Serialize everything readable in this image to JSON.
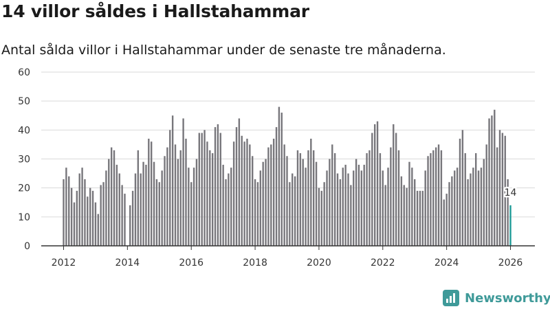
{
  "title": "14 villor såldes i Hallstahammar",
  "subtitle": "Antal sålda villor i Hallstahammar under de senaste tre månaderna.",
  "brand": {
    "name": "Newsworthy",
    "icon": "newsworthy-logo-icon"
  },
  "colors": {
    "bar": "#77767b",
    "highlight": "#1e9b97",
    "axis": "#333333",
    "grid": "#d9d9d9"
  },
  "chart_data": {
    "type": "bar",
    "title": "14 villor såldes i Hallstahammar",
    "xlabel": "",
    "ylabel": "",
    "ylim": [
      0,
      60
    ],
    "yticks": [
      0,
      10,
      20,
      30,
      40,
      50,
      60
    ],
    "xticks": [
      "2012",
      "2014",
      "2016",
      "2018",
      "2020",
      "2022",
      "2024",
      "2026"
    ],
    "x_start": "2012-01",
    "x_end": "2026-01",
    "grid": true,
    "frequency": "monthly, rolling 3-month sum",
    "values": [
      23,
      27,
      24,
      20,
      15,
      19,
      25,
      27,
      23,
      17,
      20,
      19,
      15,
      11,
      21,
      22,
      26,
      30,
      34,
      33,
      28,
      25,
      21,
      18,
      null,
      14,
      19,
      25,
      33,
      25,
      29,
      28,
      37,
      36,
      29,
      23,
      22,
      26,
      31,
      34,
      40,
      45,
      35,
      30,
      33,
      44,
      37,
      27,
      22,
      27,
      30,
      39,
      39,
      40,
      36,
      33,
      32,
      41,
      42,
      39,
      28,
      23,
      25,
      27,
      36,
      41,
      44,
      38,
      36,
      37,
      35,
      31,
      23,
      22,
      26,
      29,
      30,
      34,
      35,
      37,
      41,
      48,
      46,
      35,
      31,
      22,
      25,
      24,
      33,
      32,
      30,
      27,
      33,
      37,
      33,
      29,
      20,
      19,
      22,
      26,
      30,
      35,
      32,
      25,
      23,
      27,
      28,
      25,
      21,
      26,
      30,
      28,
      26,
      28,
      32,
      33,
      39,
      42,
      43,
      32,
      26,
      21,
      27,
      34,
      42,
      39,
      33,
      24,
      21,
      20,
      29,
      27,
      23,
      19,
      19,
      19,
      26,
      31,
      32,
      33,
      34,
      35,
      33,
      16,
      18,
      22,
      24,
      26,
      27,
      37,
      40,
      32,
      23,
      25,
      27,
      32,
      26,
      27,
      30,
      35,
      44,
      45,
      47,
      34,
      40,
      39,
      38,
      23,
      14
    ],
    "highlight": {
      "label": "14",
      "value": 14,
      "period": "2026-01"
    }
  }
}
